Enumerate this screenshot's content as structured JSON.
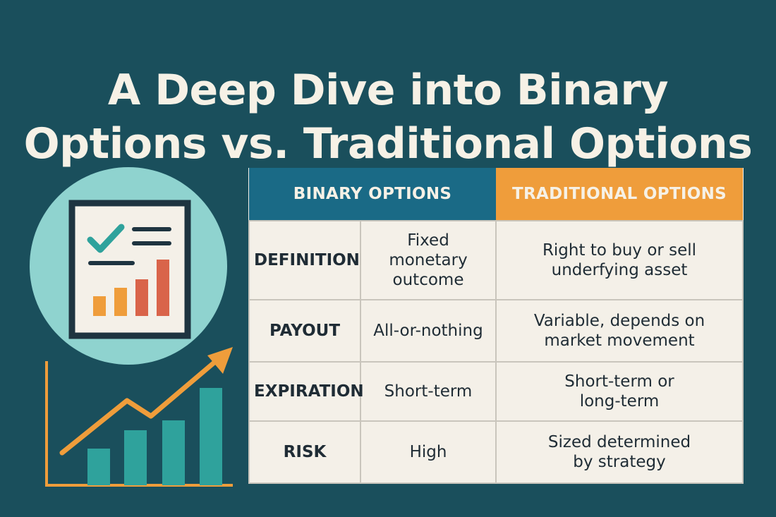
{
  "title": {
    "line1": "A Deep Dive into Binary",
    "line2": "Options vs. Traditional Options"
  },
  "colors": {
    "background": "#1a4f5c",
    "binary_header": "#1a6a86",
    "traditional_header": "#ef9d3b",
    "table_body": "#f4f0e8",
    "circle": "#8fd3cf",
    "bars_teal": "#2fa29c",
    "arrow_orange": "#ef9d3b"
  },
  "illustration": {
    "icons": [
      "document-icon",
      "checkmark-icon",
      "bar-chart-icon",
      "rising-arrow-chart-icon"
    ]
  },
  "table": {
    "headers": {
      "binary": "BINARY OPTIONS",
      "traditional": "TRADITIONAL OPTIONS"
    },
    "rows": [
      {
        "label": "DEFINITION",
        "binary": "Fixed monetary outcome",
        "traditional": "Right to buy or sell underfying asset"
      },
      {
        "label": "PAYOUT",
        "binary": "All-or-nothing",
        "traditional": "Variable, depends on market movement"
      },
      {
        "label": "EXPIRATION",
        "binary": "Short-term",
        "traditional": "Short-term or long-term"
      },
      {
        "label": "RISK",
        "binary": "High",
        "traditional": "Sized determined by strategy"
      }
    ]
  }
}
